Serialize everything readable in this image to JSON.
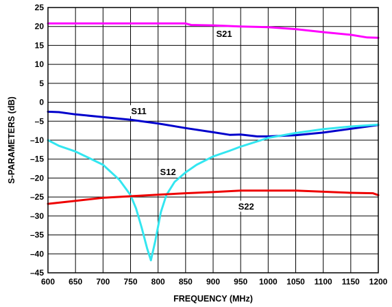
{
  "chart_data": {
    "type": "line",
    "title": "",
    "xlabel": "FREQUENCY (MHz)",
    "ylabel": "S-PARAMETERS (dB)",
    "xlim": [
      600,
      1200
    ],
    "ylim": [
      -45,
      25
    ],
    "xticks": [
      600,
      650,
      700,
      750,
      800,
      850,
      900,
      950,
      1000,
      1050,
      1100,
      1150,
      1200
    ],
    "yticks": [
      25,
      20,
      15,
      10,
      5,
      0,
      -5,
      -10,
      -15,
      -20,
      -25,
      -30,
      -35,
      -40,
      -45
    ],
    "ytick_labels": [
      "25",
      "20",
      "15",
      "10",
      "5",
      "0",
      "–5",
      "–10",
      "–15",
      "–20",
      "–25",
      "–30",
      "–35",
      "–40",
      "–45"
    ],
    "grid": true,
    "series": [
      {
        "name": "S21",
        "color": "#ff00ff",
        "x": [
          600,
          650,
          700,
          750,
          800,
          850,
          860,
          900,
          950,
          1000,
          1050,
          1100,
          1150,
          1180,
          1200
        ],
        "y": [
          20.8,
          20.8,
          20.8,
          20.8,
          20.8,
          20.8,
          20.4,
          20.3,
          20.0,
          19.8,
          19.3,
          18.5,
          17.8,
          17.1,
          17.0
        ]
      },
      {
        "name": "S11",
        "color": "#0000cc",
        "x": [
          600,
          620,
          650,
          700,
          750,
          800,
          850,
          900,
          930,
          950,
          980,
          1000,
          1050,
          1100,
          1150,
          1200
        ],
        "y": [
          -2.5,
          -2.6,
          -3.2,
          -3.9,
          -4.6,
          -5.6,
          -6.8,
          -7.9,
          -8.6,
          -8.5,
          -9.0,
          -9.0,
          -8.7,
          -8.0,
          -7.0,
          -6.0
        ]
      },
      {
        "name": "S12",
        "color": "#33e6f0",
        "x": [
          600,
          620,
          650,
          700,
          730,
          750,
          760,
          770,
          780,
          787,
          795,
          805,
          815,
          830,
          850,
          870,
          900,
          930,
          950,
          1000,
          1050,
          1100,
          1150,
          1200
        ],
        "y": [
          -10.0,
          -11.5,
          -13.0,
          -16.5,
          -20.5,
          -24.5,
          -28.0,
          -33.0,
          -38.5,
          -41.7,
          -36.5,
          -29.0,
          -24.5,
          -21.0,
          -18.5,
          -16.5,
          -14.3,
          -12.8,
          -11.7,
          -9.4,
          -8.1,
          -7.1,
          -6.4,
          -5.9
        ]
      },
      {
        "name": "S22",
        "color": "#ee0000",
        "x": [
          600,
          650,
          700,
          750,
          800,
          850,
          900,
          950,
          1000,
          1050,
          1100,
          1150,
          1190,
          1200
        ],
        "y": [
          -26.8,
          -26.0,
          -25.2,
          -24.8,
          -24.4,
          -24.0,
          -23.7,
          -23.3,
          -23.3,
          -23.3,
          -23.6,
          -23.9,
          -24.0,
          -24.5
        ]
      }
    ],
    "annotations": [
      {
        "text": "S21",
        "x": 920,
        "y": 18.0
      },
      {
        "text": "S11",
        "x": 765,
        "y": -2.4
      },
      {
        "text": "S12",
        "x": 818,
        "y": -18.5
      },
      {
        "text": "S22",
        "x": 960,
        "y": -27.6
      }
    ]
  }
}
